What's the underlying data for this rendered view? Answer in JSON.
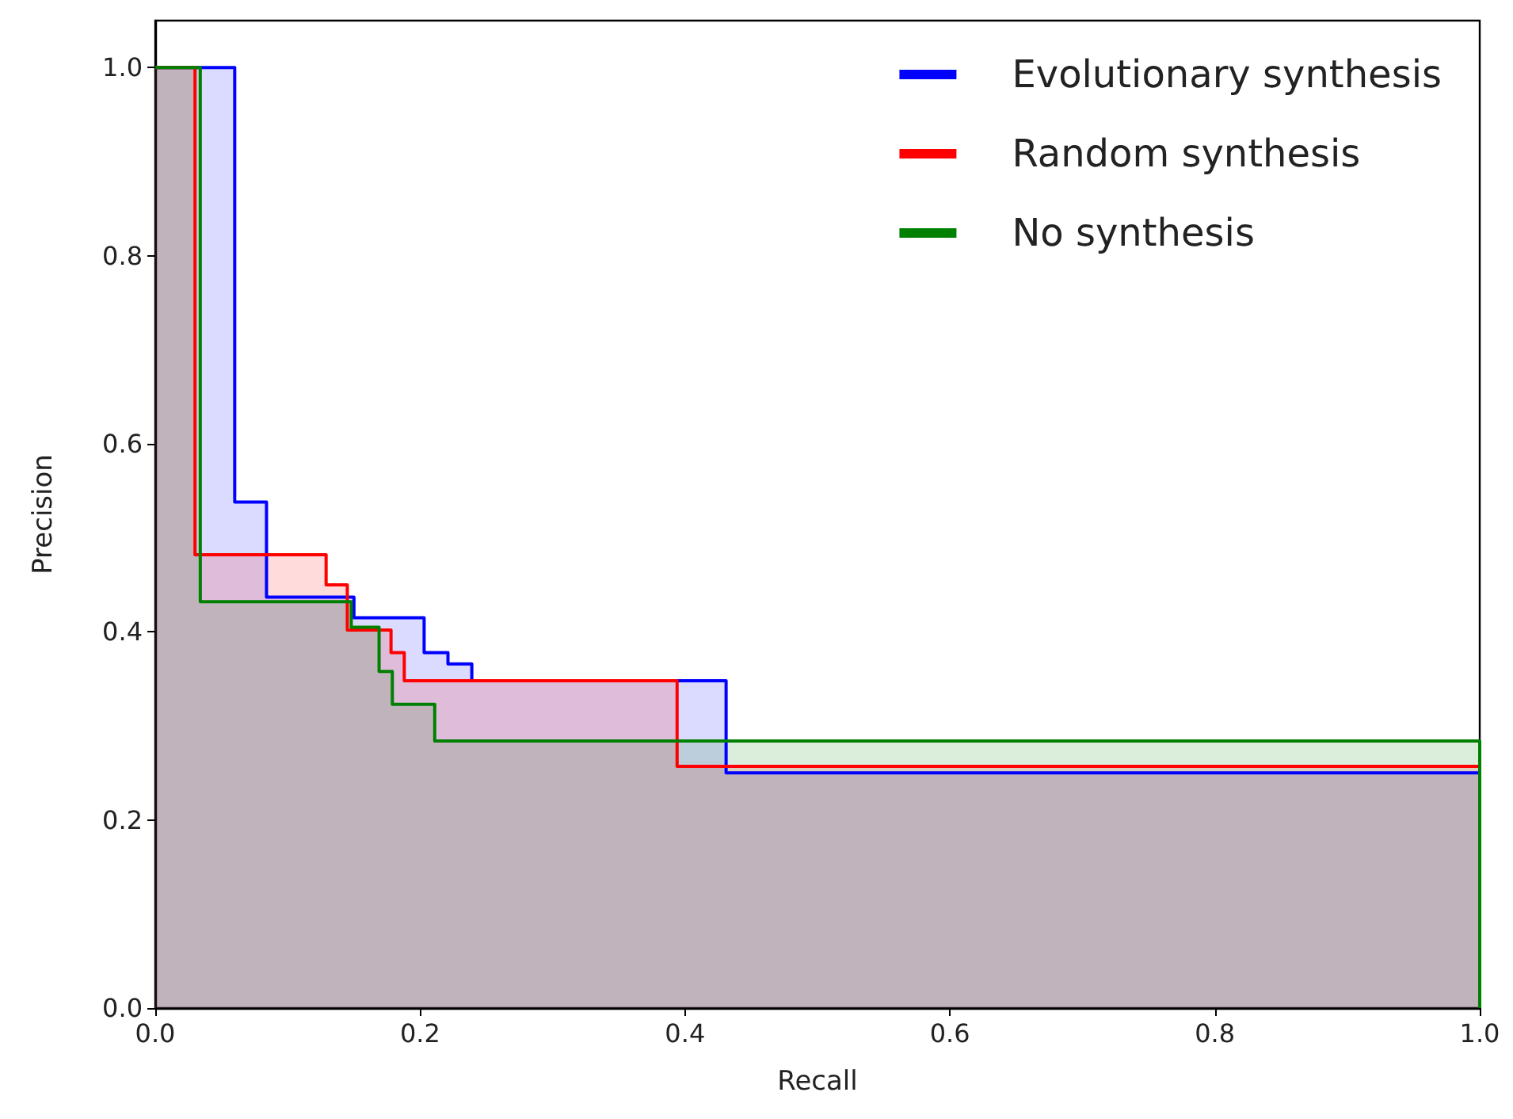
{
  "chart_data": {
    "type": "step",
    "xlabel": "Recall",
    "ylabel": "Precision",
    "xlim": [
      0,
      1
    ],
    "ylim": [
      0,
      1.05
    ],
    "xticks": [
      {
        "value": 0,
        "label": "0.0"
      },
      0.2,
      0.4,
      0.6,
      0.8,
      {
        "value": 1,
        "label": "1.0"
      }
    ],
    "yticks": [
      {
        "value": 0,
        "label": "0.0"
      },
      0.2,
      0.4,
      0.6,
      0.8,
      {
        "value": 1,
        "label": "1.0"
      }
    ],
    "grid": false,
    "legend": "top right",
    "series": [
      {
        "name": "Evolutionary synthesis",
        "color": "#0000ff",
        "x": [
          0,
          0.06,
          0.084,
          0.15,
          0.203,
          0.221,
          0.239,
          0.431,
          1,
          1
        ],
        "values": [
          1,
          0.538,
          0.437,
          0.415,
          0.378,
          0.366,
          0.348,
          0.25,
          0.25,
          0
        ]
      },
      {
        "name": "Random synthesis",
        "color": "#ff0000",
        "x": [
          0,
          0.03,
          0.129,
          0.145,
          0.178,
          0.188,
          0.394,
          1,
          1
        ],
        "values": [
          1,
          0.482,
          0.45,
          0.402,
          0.378,
          0.348,
          0.257,
          0.257,
          0
        ]
      },
      {
        "name": "No synthesis",
        "color": "#008000",
        "x": [
          0,
          0.034,
          0.148,
          0.169,
          0.179,
          0.211,
          1,
          1
        ],
        "values": [
          1,
          0.432,
          0.405,
          0.358,
          0.323,
          0.284,
          0.284,
          0
        ]
      }
    ]
  }
}
